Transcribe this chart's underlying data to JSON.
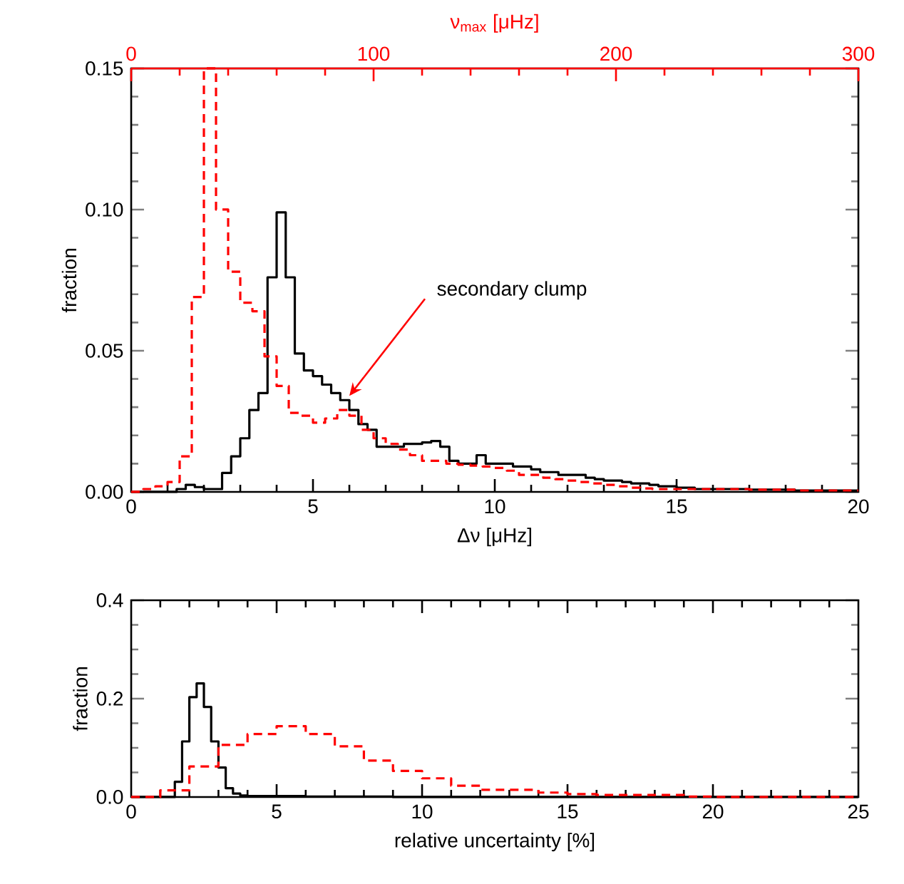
{
  "chart_data": [
    {
      "type": "histogram",
      "xlabel": "Δν [μHz]",
      "ylabel": "fraction",
      "x2label": "ν$_{max}$ [μHz]",
      "xlim": [
        0,
        20
      ],
      "ylim": [
        0,
        0.15
      ],
      "x2lim": [
        0,
        300
      ],
      "xticks": [
        0,
        5,
        10,
        15,
        20
      ],
      "x2ticks": [
        0,
        100,
        200,
        300
      ],
      "yticks": [
        {
          "value": 0,
          "label": "0.00"
        },
        {
          "value": 0.05,
          "label": "0.05"
        },
        {
          "value": 0.1,
          "label": "0.10"
        },
        {
          "value": 0.15,
          "label": "0.15"
        }
      ],
      "annotations": [
        {
          "text": "secondary clump",
          "x": 6.0,
          "y": 0.034
        }
      ],
      "bins": [
        0,
        0.25,
        0.5,
        0.75,
        1,
        1.25,
        1.5,
        1.75,
        2,
        2.25,
        2.5,
        2.75,
        3,
        3.25,
        3.5,
        3.75,
        4,
        4.25,
        4.5,
        4.75,
        5,
        5.25,
        5.5,
        5.75,
        6,
        6.25,
        6.5,
        6.75,
        7,
        7.25,
        7.5,
        7.75,
        8,
        8.25,
        8.5,
        8.75,
        9,
        9.25,
        9.5,
        9.75,
        10,
        10.25,
        10.5,
        10.75,
        11,
        11.25,
        11.5,
        11.75,
        12,
        12.25,
        12.5,
        12.75,
        13,
        13.25,
        13.5,
        13.75,
        14,
        14.25,
        14.5,
        14.75,
        15,
        15.25,
        15.5,
        15.75,
        16,
        16.25,
        16.5,
        16.75,
        17,
        17.25,
        17.5,
        17.75,
        18,
        18.25,
        18.5,
        18.75,
        19,
        19.25,
        19.5,
        19.75,
        20
      ],
      "series": [
        {
          "color": "#000000",
          "line_style": "solid",
          "values": [
            0,
            0,
            0,
            0,
            0,
            0.001,
            0.0025,
            0.0017,
            0.001,
            0.001,
            0.0067,
            0.0126,
            0.019,
            0.029,
            0.035,
            0.076,
            0.099,
            0.076,
            0.049,
            0.043,
            0.041,
            0.038,
            0.035,
            0.0325,
            0.029,
            0.024,
            0.022,
            0.016,
            0.016,
            0.016,
            0.017,
            0.017,
            0.0175,
            0.018,
            0.016,
            0.011,
            0.01,
            0.01,
            0.013,
            0.01,
            0.01,
            0.01,
            0.009,
            0.009,
            0.008,
            0.007,
            0.007,
            0.006,
            0.006,
            0.006,
            0.005,
            0.0045,
            0.004,
            0.004,
            0.0035,
            0.003,
            0.003,
            0.0025,
            0.002,
            0.002,
            0.0015,
            0.0015,
            0.001,
            0.001,
            0.001,
            0.001,
            0.001,
            0.001,
            0.0008,
            0.0008,
            0.0008,
            0.0008,
            0.0008,
            0.0005,
            0.0005,
            0.0005,
            0.0005,
            0.0005,
            0.0005,
            0.0005
          ]
        },
        {
          "color": "#ff0000",
          "line_style": "dashed",
          "axis": "x2",
          "bins": [
            0,
            5,
            10,
            15,
            20,
            25,
            30,
            35,
            40,
            45,
            50,
            55,
            60,
            65,
            70,
            75,
            80,
            85,
            90,
            95,
            100,
            105,
            110,
            115,
            120,
            125,
            130,
            135,
            140,
            145,
            150,
            155,
            160,
            165,
            170,
            175,
            180,
            185,
            190,
            195,
            200,
            205,
            210,
            215,
            220,
            225,
            230,
            235,
            240,
            245,
            250,
            255,
            260,
            265,
            270,
            275,
            280,
            285,
            290,
            295,
            300
          ],
          "values": [
            0,
            0.001,
            0.002,
            0.0035,
            0.0126,
            0.069,
            0.15,
            0.1,
            0.078,
            0.067,
            0.064,
            0.048,
            0.0375,
            0.028,
            0.027,
            0.0245,
            0.026,
            0.029,
            0.027,
            0.022,
            0.019,
            0.017,
            0.015,
            0.013,
            0.011,
            0.011,
            0.01,
            0.0096,
            0.0093,
            0.009,
            0.0085,
            0.0075,
            0.006,
            0.006,
            0.005,
            0.0045,
            0.004,
            0.0035,
            0.003,
            0.0025,
            0.002,
            0.0015,
            0.0012,
            0.001,
            0.001,
            0.001,
            0.001,
            0.001,
            0.001,
            0.001,
            0.001,
            0.0008,
            0.0008,
            0.0008,
            0.0008,
            0.0005,
            0.0005,
            0.0005,
            0.0005,
            0.0005
          ]
        }
      ]
    },
    {
      "type": "histogram",
      "xlabel": "relative uncertainty [%]",
      "ylabel": "fraction",
      "xlim": [
        0,
        25
      ],
      "ylim": [
        0,
        0.4
      ],
      "xticks": [
        0,
        5,
        10,
        15,
        20,
        25
      ],
      "yticks": [
        {
          "value": 0,
          "label": "0.0"
        },
        {
          "value": 0.2,
          "label": "0.2"
        },
        {
          "value": 0.4,
          "label": "0.4"
        }
      ],
      "bins": [
        0,
        0.25,
        0.5,
        0.75,
        1,
        1.25,
        1.5,
        1.75,
        2,
        2.25,
        2.5,
        2.75,
        3,
        3.25,
        3.5,
        3.75,
        4,
        4.25,
        4.5,
        4.75,
        5,
        5.25,
        5.5,
        5.75,
        6,
        6.25,
        6.5,
        6.75,
        7,
        7.25,
        7.5,
        7.75,
        8,
        8.25,
        8.5,
        8.75,
        9,
        9.25,
        9.5,
        9.75,
        10,
        10.25,
        10.5,
        10.75,
        11,
        11.25,
        11.5,
        11.75,
        12,
        12.25,
        12.5,
        12.75,
        13,
        13.25,
        13.5,
        13.75,
        14,
        14.25,
        14.5,
        14.75,
        15,
        15.25,
        15.5,
        15.75,
        16,
        16.25,
        16.5,
        16.75,
        17,
        17.25,
        17.5,
        17.75,
        18,
        18.25,
        18.5,
        18.75,
        19,
        19.25,
        19.5,
        19.75,
        20,
        20.25,
        20.5,
        20.75,
        21,
        21.25,
        21.5,
        21.75,
        22,
        22.25,
        22.5,
        22.75,
        23,
        23.25,
        23.5,
        23.75,
        24,
        24.25,
        24.5,
        24.75,
        25
      ],
      "series": [
        {
          "color": "#000000",
          "line_style": "solid",
          "values": [
            0,
            0,
            0,
            0,
            0,
            0,
            0.031,
            0.113,
            0.203,
            0.231,
            0.183,
            0.113,
            0.06,
            0.018,
            0.007,
            0.003,
            0.002,
            0.002,
            0.002,
            0.002,
            0.002,
            0.002,
            0.002,
            0.002,
            0.001,
            0.001,
            0.001,
            0.001,
            0.001,
            0.001,
            0.001,
            0.001,
            0.001,
            0.001,
            0.001,
            0.001,
            0,
            0,
            0,
            0,
            0,
            0,
            0,
            0,
            0,
            0,
            0,
            0,
            0,
            0,
            0,
            0,
            0,
            0,
            0,
            0,
            0,
            0,
            0,
            0,
            0,
            0,
            0,
            0,
            0,
            0,
            0,
            0,
            0,
            0,
            0,
            0,
            0,
            0,
            0,
            0,
            0,
            0,
            0,
            0,
            0,
            0,
            0,
            0,
            0,
            0,
            0,
            0,
            0,
            0,
            0,
            0,
            0,
            0,
            0,
            0,
            0,
            0,
            0,
            0
          ]
        },
        {
          "color": "#ff0000",
          "line_style": "dashed",
          "bins": [
            0,
            1,
            2,
            3,
            4,
            5,
            6,
            7,
            8,
            9,
            10,
            11,
            12,
            13,
            14,
            15,
            16,
            17,
            18,
            19,
            20,
            21,
            22,
            23,
            24,
            25
          ],
          "values": [
            0,
            0.0135,
            0.062,
            0.106,
            0.128,
            0.144,
            0.128,
            0.103,
            0.074,
            0.053,
            0.038,
            0.023,
            0.0145,
            0.0145,
            0.009,
            0.006,
            0.004,
            0.004,
            0.004,
            0.001,
            0,
            0,
            0,
            0,
            0
          ]
        }
      ]
    }
  ]
}
